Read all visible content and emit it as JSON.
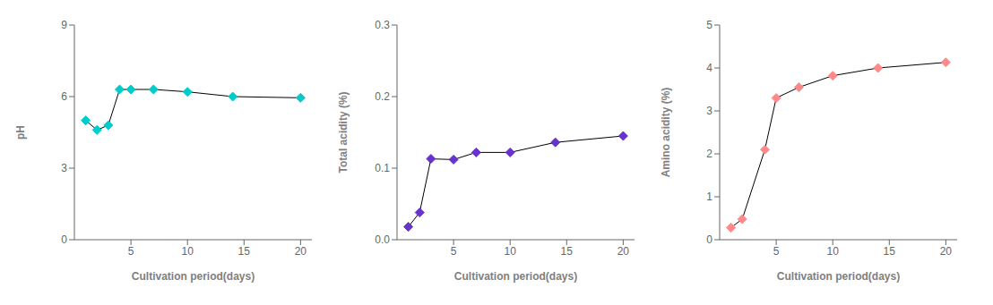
{
  "chart_data": [
    {
      "type": "line",
      "xlabel": "Cultivation period(days)",
      "ylabel": "pH",
      "x": [
        1,
        2,
        3,
        4,
        5,
        7,
        10,
        14,
        20
      ],
      "values": [
        5.0,
        4.6,
        4.8,
        6.3,
        6.3,
        6.3,
        6.2,
        6.0,
        5.95
      ],
      "color": "#00CCCC",
      "marker": "diamond",
      "xlim": [
        0,
        21
      ],
      "xticks": [
        5,
        10,
        15,
        20
      ],
      "ylim": [
        0,
        9
      ],
      "yticks": [
        0,
        3,
        6,
        9
      ]
    },
    {
      "type": "line",
      "xlabel": "Cultivation period(days)",
      "ylabel": "Total acidity (%)",
      "x": [
        1,
        2,
        3,
        5,
        7,
        10,
        14,
        20
      ],
      "values": [
        0.018,
        0.038,
        0.113,
        0.112,
        0.122,
        0.122,
        0.136,
        0.145
      ],
      "color": "#6633CC",
      "marker": "diamond",
      "xlim": [
        0,
        21
      ],
      "xticks": [
        5,
        10,
        15,
        20
      ],
      "ylim": [
        0.0,
        0.3
      ],
      "yticks": [
        {
          "value": 0.0,
          "label": "0.0"
        },
        0.1,
        0.2,
        0.3
      ]
    },
    {
      "type": "line",
      "xlabel": "Cultivation period(days)",
      "ylabel": "Amino acidity (%)",
      "x": [
        1,
        2,
        4,
        5,
        7,
        10,
        14,
        20
      ],
      "values": [
        0.28,
        0.48,
        2.1,
        3.3,
        3.55,
        3.82,
        4.0,
        4.13
      ],
      "color": "#FF8888",
      "marker": "diamond",
      "xlim": [
        0,
        21
      ],
      "xticks": [
        5,
        10,
        15,
        20
      ],
      "ylim": [
        0,
        5
      ],
      "yticks": [
        0,
        1,
        2,
        3,
        4,
        5
      ]
    }
  ]
}
